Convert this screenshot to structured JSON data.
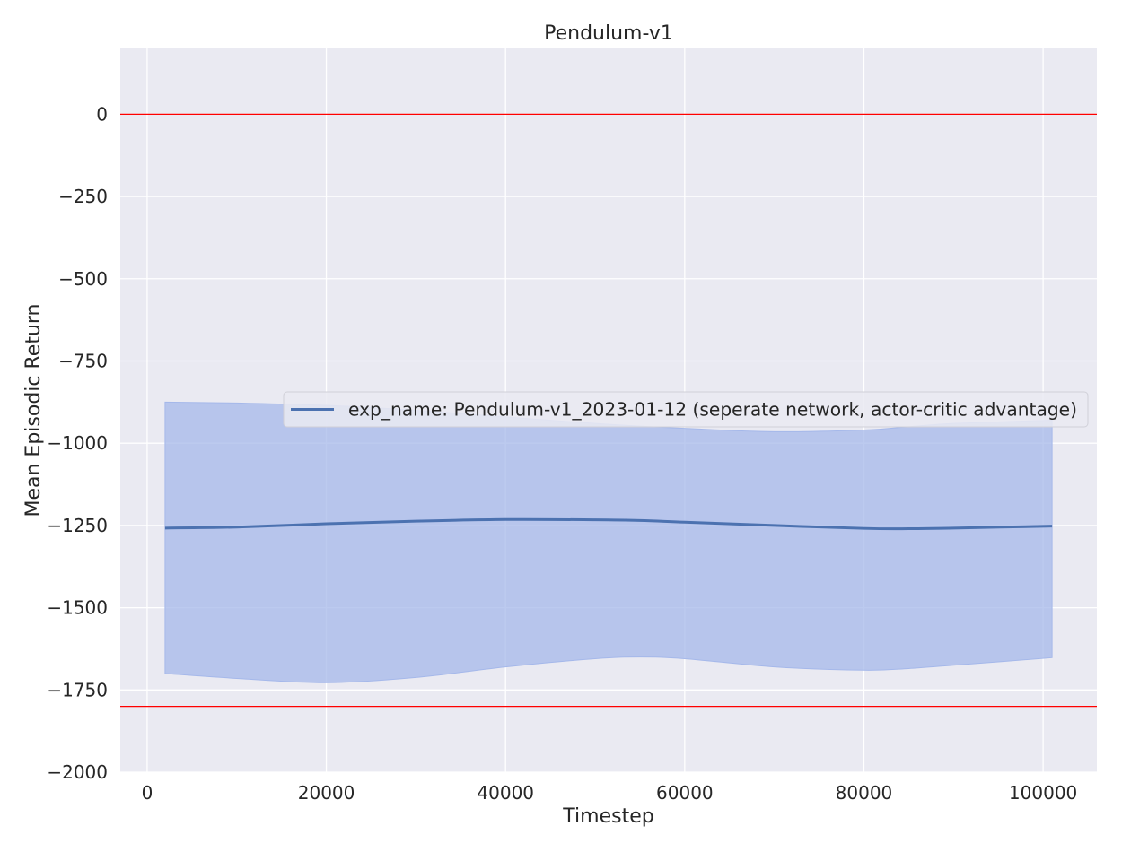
{
  "chart_data": {
    "type": "line",
    "title": "Pendulum-v1",
    "xlabel": "Timestep",
    "ylabel": "Mean Episodic Return",
    "xlim": [
      -3000,
      106000
    ],
    "ylim": [
      -2000,
      200
    ],
    "xticks": [
      0,
      20000,
      40000,
      60000,
      80000,
      100000
    ],
    "yticks": [
      0,
      -250,
      -500,
      -750,
      -1000,
      -1250,
      -1500,
      -1750,
      -2000
    ],
    "grid": true,
    "legend_position": "center-right",
    "reference_lines": [
      0,
      -1800
    ],
    "reference_line_color": "#ff0000",
    "series": [
      {
        "name": "exp_name: Pendulum-v1_2023-01-12 (seperate network, actor-critic advantage)",
        "color": "#4c72b0",
        "band_color": "#a5b8ea",
        "x": [
          2000,
          10000,
          20000,
          30000,
          40000,
          50000,
          55000,
          60000,
          70000,
          80000,
          85000,
          90000,
          101000
        ],
        "mean": [
          -1258,
          -1255,
          -1245,
          -1237,
          -1232,
          -1233,
          -1235,
          -1240,
          -1250,
          -1259,
          -1260,
          -1258,
          -1252
        ],
        "upper": [
          -875,
          -878,
          -885,
          -900,
          -920,
          -940,
          -948,
          -955,
          -965,
          -960,
          -950,
          -940,
          -930
        ],
        "lower": [
          -1700,
          -1715,
          -1728,
          -1712,
          -1680,
          -1655,
          -1650,
          -1655,
          -1680,
          -1690,
          -1685,
          -1675,
          -1652
        ]
      }
    ]
  }
}
